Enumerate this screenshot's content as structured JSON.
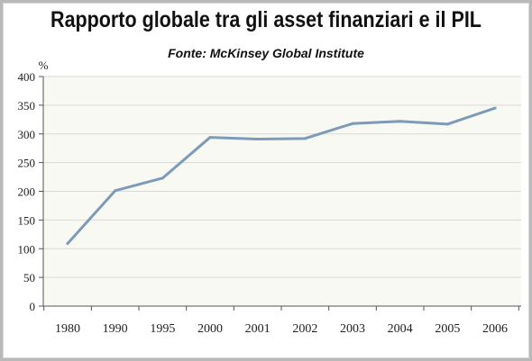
{
  "chart_data": {
    "type": "line",
    "title": "Rapporto globale tra gli asset finanziari e il PIL",
    "subtitle": "Fonte: McKinsey Global Institute",
    "ylabel": "%",
    "xlabel": "",
    "categories": [
      "1980",
      "1990",
      "1995",
      "2000",
      "2001",
      "2002",
      "2003",
      "2004",
      "2005",
      "2006"
    ],
    "series": [
      {
        "values": [
          109,
          201,
          223,
          294,
          291,
          292,
          318,
          322,
          317,
          345
        ]
      }
    ],
    "ylim": [
      0,
      400
    ],
    "yticks": [
      "0",
      "50",
      "100",
      "150",
      "200",
      "250",
      "300",
      "350",
      "400"
    ],
    "grid": true,
    "legend": "none",
    "line_color": "#7d9bb9",
    "plot_background": "#f9f9f3",
    "grid_color": "#d9d9d9"
  }
}
